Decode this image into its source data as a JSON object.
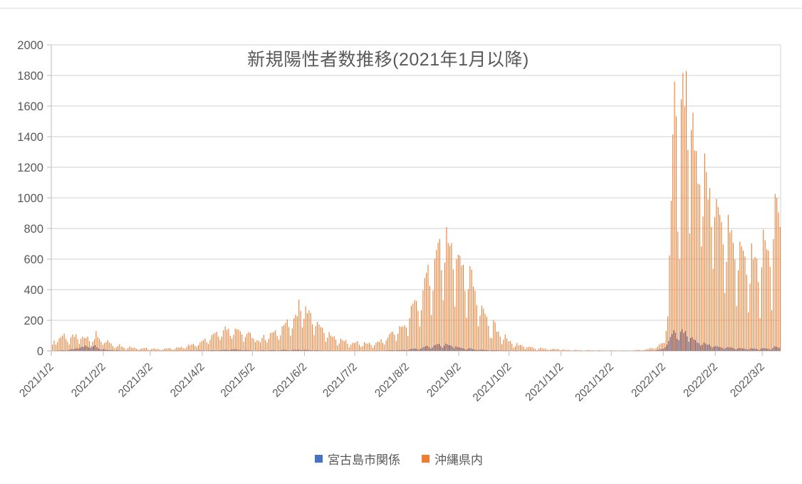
{
  "title": "新規陽性者数推移(2021年1月以降)",
  "legend": [
    {
      "label": "宮古島市関係",
      "color": "#4472C4"
    },
    {
      "label": "沖縄県内",
      "color": "#ED7D31"
    }
  ],
  "colors": {
    "gridline": "#D9D9D9",
    "axis": "#C6C6C6",
    "text": "#595959",
    "top_rule": "#DCDCDC",
    "background": "#FFFFFF"
  },
  "y_axis": {
    "min": 0,
    "max": 2000,
    "step": 200,
    "tick_labels": [
      "0",
      "200",
      "400",
      "600",
      "800",
      "1000",
      "1200",
      "1400",
      "1600",
      "1800",
      "2000"
    ]
  },
  "x_axis": {
    "tick_labels": [
      "2021/1/2",
      "2021/2/2",
      "2021/3/2",
      "2021/4/2",
      "2021/5/2",
      "2021/6/2",
      "2021/7/2",
      "2021/8/2",
      "2021/9/2",
      "2021/10/2",
      "2021/11/2",
      "2021/12/2",
      "2022/1/2",
      "2022/2/2",
      "2022/3/2"
    ]
  },
  "chart_data": {
    "type": "bar",
    "title": "新規陽性者数推移(2021年1月以降)",
    "xlabel": "",
    "ylabel": "",
    "ylim": [
      0,
      2000
    ],
    "grid": true,
    "legend_position": "bottom",
    "start_date": "2021/1/2",
    "frequency": "daily",
    "series": [
      {
        "name": "宮古島市関係",
        "color": "#4472C4",
        "values": [
          0,
          1,
          0,
          2,
          3,
          2,
          5,
          4,
          3,
          2,
          6,
          8,
          12,
          10,
          14,
          18,
          15,
          22,
          28,
          25,
          36,
          30,
          24,
          18,
          26,
          32,
          38,
          24,
          15,
          10,
          8,
          12,
          9,
          7,
          5,
          6,
          4,
          3,
          2,
          4,
          3,
          2,
          1,
          2,
          0,
          1,
          2,
          1,
          0,
          1,
          1,
          0,
          0,
          1,
          0,
          1,
          0,
          0,
          0,
          1,
          0,
          0,
          1,
          0,
          0,
          0,
          1,
          0,
          1,
          0,
          0,
          1,
          0,
          0,
          1,
          2,
          1,
          0,
          1,
          0,
          1,
          2,
          1,
          3,
          2,
          1,
          2,
          3,
          4,
          3,
          2,
          2,
          1,
          2,
          3,
          4,
          5,
          4,
          3,
          3,
          4,
          5,
          6,
          8,
          7,
          6,
          5,
          8,
          10,
          12,
          10,
          8,
          7,
          6,
          4,
          5,
          6,
          5,
          4,
          3,
          2,
          1,
          2,
          3,
          2,
          4,
          5,
          3,
          2,
          3,
          4,
          5,
          6,
          5,
          3,
          2,
          4,
          6,
          7,
          8,
          6,
          4,
          3,
          5,
          7,
          8,
          6,
          9,
          7,
          5,
          6,
          8,
          7,
          6,
          5,
          4,
          2,
          4,
          5,
          4,
          3,
          3,
          2,
          1,
          2,
          3,
          2,
          2,
          1,
          1,
          0,
          1,
          2,
          1,
          1,
          1,
          0,
          0,
          1,
          1,
          1,
          1,
          2,
          1,
          0,
          1,
          1,
          1,
          0,
          1,
          0,
          0,
          1,
          1,
          2,
          1,
          2,
          1,
          1,
          2,
          3,
          4,
          5,
          4,
          3,
          2,
          4,
          6,
          5,
          6,
          7,
          6,
          4,
          8,
          12,
          14,
          16,
          15,
          12,
          8,
          13,
          20,
          26,
          30,
          34,
          25,
          14,
          22,
          36,
          40,
          44,
          46,
          32,
          20,
          34,
          48,
          42,
          38,
          36,
          28,
          16,
          30,
          26,
          24,
          20,
          18,
          14,
          8,
          12,
          18,
          16,
          12,
          10,
          8,
          5,
          7,
          9,
          8,
          7,
          6,
          5,
          3,
          3,
          6,
          5,
          4,
          4,
          3,
          2,
          2,
          3,
          2,
          2,
          2,
          1,
          1,
          1,
          2,
          1,
          1,
          1,
          1,
          0,
          1,
          1,
          1,
          1,
          0,
          0,
          0,
          0,
          1,
          0,
          0,
          0,
          0,
          0,
          0,
          0,
          0,
          0,
          0,
          0,
          0,
          0,
          1,
          0,
          0,
          0,
          0,
          0,
          0,
          1,
          0,
          0,
          0,
          0,
          0,
          0,
          0,
          0,
          0,
          0,
          0,
          0,
          0,
          0,
          0,
          0,
          0,
          0,
          0,
          0,
          0,
          0,
          0,
          0,
          0,
          0,
          0,
          0,
          0,
          0,
          0,
          0,
          0,
          0,
          0,
          0,
          0,
          1,
          0,
          0,
          1,
          1,
          2,
          2,
          3,
          2,
          1,
          3,
          5,
          8,
          10,
          12,
          15,
          24,
          40,
          65,
          90,
          110,
          135,
          120,
          80,
          70,
          125,
          140,
          118,
          130,
          95,
          60,
          85,
          90,
          75,
          70,
          55,
          50,
          35,
          40,
          55,
          48,
          40,
          42,
          32,
          22,
          28,
          32,
          30,
          26,
          24,
          20,
          12,
          18,
          26,
          22,
          24,
          20,
          16,
          10,
          14,
          20,
          18,
          16,
          15,
          12,
          8,
          12,
          18,
          15,
          16,
          14,
          10,
          6,
          14,
          20,
          18,
          16,
          15,
          12,
          8,
          18,
          30,
          28,
          24,
          20
        ]
      },
      {
        "name": "沖縄県内",
        "color": "#ED7D31",
        "values": [
          41,
          68,
          40,
          58,
          81,
          90,
          100,
          113,
          77,
          59,
          42,
          90,
          108,
          92,
          109,
          77,
          46,
          79,
          94,
          83,
          85,
          94,
          64,
          35,
          61,
          77,
          130,
          91,
          78,
          60,
          40,
          51,
          58,
          71,
          54,
          49,
          31,
          17,
          24,
          32,
          44,
          27,
          26,
          17,
          8,
          18,
          30,
          22,
          19,
          22,
          14,
          8,
          10,
          16,
          17,
          19,
          20,
          9,
          5,
          12,
          15,
          16,
          10,
          13,
          8,
          4,
          9,
          15,
          16,
          17,
          19,
          11,
          8,
          12,
          23,
          22,
          22,
          26,
          17,
          14,
          26,
          41,
          35,
          41,
          46,
          34,
          26,
          37,
          55,
          64,
          70,
          81,
          56,
          45,
          73,
          103,
          112,
          118,
          125,
          93,
          72,
          94,
          135,
          160,
          137,
          145,
          98,
          80,
          105,
          146,
          142,
          140,
          128,
          108,
          59,
          90,
          113,
          123,
          118,
          85,
          79,
          56,
          70,
          65,
          55,
          85,
          105,
          71,
          55,
          80,
          117,
          120,
          124,
          135,
          97,
          72,
          101,
          160,
          168,
          183,
          205,
          156,
          99,
          147,
          213,
          236,
          226,
          335,
          262,
          153,
          211,
          291,
          245,
          265,
          247,
          174,
          103,
          163,
          191,
          172,
          156,
          151,
          117,
          59,
          87,
          121,
          100,
          92,
          95,
          74,
          36,
          49,
          81,
          70,
          62,
          71,
          47,
          23,
          41,
          53,
          51,
          57,
          64,
          40,
          26,
          31,
          56,
          50,
          46,
          54,
          39,
          21,
          37,
          54,
          62,
          58,
          77,
          53,
          41,
          69,
          87,
          110,
          122,
          125,
          105,
          64,
          112,
          162,
          157,
          160,
          167,
          153,
          97,
          214,
          294,
          310,
          332,
          325,
          262,
          159,
          266,
          395,
          476,
          510,
          563,
          425,
          235,
          394,
          601,
          659,
          707,
          732,
          527,
          331,
          576,
          809,
          706,
          687,
          705,
          533,
          290,
          599,
          628,
          622,
          556,
          563,
          393,
          217,
          402,
          554,
          531,
          420,
          393,
          300,
          160,
          231,
          296,
          276,
          243,
          223,
          164,
          86,
          82,
          201,
          187,
          125,
          127,
          93,
          45,
          73,
          108,
          82,
          62,
          66,
          47,
          19,
          31,
          52,
          36,
          39,
          36,
          27,
          12,
          24,
          27,
          25,
          26,
          18,
          12,
          5,
          13,
          23,
          17,
          13,
          15,
          8,
          4,
          9,
          12,
          15,
          10,
          13,
          9,
          3,
          6,
          9,
          6,
          5,
          6,
          3,
          1,
          4,
          8,
          5,
          4,
          5,
          2,
          1,
          2,
          6,
          4,
          3,
          4,
          2,
          1,
          3,
          5,
          3,
          2,
          3,
          1,
          0,
          2,
          4,
          2,
          3,
          2,
          1,
          0,
          2,
          3,
          2,
          3,
          2,
          1,
          0,
          2,
          4,
          5,
          7,
          6,
          4,
          3,
          6,
          9,
          12,
          16,
          20,
          17,
          12,
          19,
          29,
          42,
          49,
          52,
          51,
          130,
          225,
          623,
          981,
          1414,
          1759,
          1533,
          779,
          600,
          1644,
          1817,
          1596,
          1829,
          1313,
          767,
          1443,
          1557,
          1309,
          1306,
          1093,
          1086,
          682,
          878,
          1290,
          1169,
          990,
          1064,
          809,
          536,
          873,
          994,
          940,
          889,
          843,
          696,
          379,
          582,
          890,
          774,
          790,
          706,
          598,
          294,
          527,
          714,
          683,
          655,
          617,
          497,
          252,
          439,
          703,
          598,
          614,
          602,
          450,
          215,
          546,
          793,
          723,
          663,
          656,
          550,
          266,
          731,
          1026,
          999,
          905,
          810
        ]
      }
    ]
  }
}
